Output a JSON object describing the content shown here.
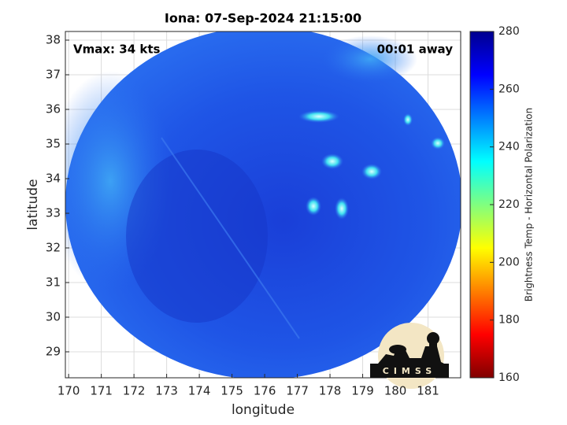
{
  "chart_data": {
    "type": "image",
    "title": "Iona: 07-Sep-2024 21:15:00",
    "xlabel": "longitude",
    "ylabel": "latitude",
    "xlim": [
      169.9,
      182
    ],
    "ylim": [
      28.25,
      38.25
    ],
    "xticks": [
      170,
      171,
      172,
      173,
      174,
      175,
      176,
      177,
      178,
      179,
      180,
      181
    ],
    "yticks": [
      29,
      30,
      31,
      32,
      33,
      34,
      35,
      36,
      37,
      38
    ],
    "grid": true,
    "annotations": [
      "Vmax: 34 kts",
      "00:01 away"
    ],
    "logo": "CIMSS",
    "colorbar": {
      "label": "Brightness Temp - Horizontal Polarization",
      "lim": [
        160,
        280
      ],
      "ticks": [
        160,
        180,
        200,
        220,
        240,
        260,
        280
      ]
    }
  }
}
